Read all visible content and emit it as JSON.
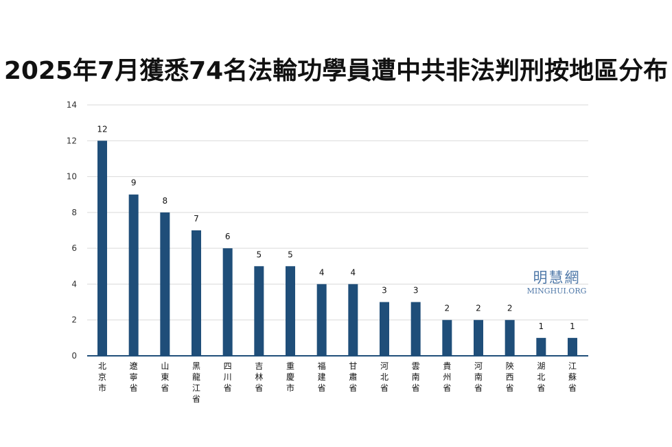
{
  "chart_data": {
    "type": "bar",
    "title": "2025年7月獲悉74名法輪功學員遭中共非法判刑按地區分布",
    "categories": [
      "北京市",
      "遼寧省",
      "山東省",
      "黑龍江省",
      "四川省",
      "吉林省",
      "重慶市",
      "福建省",
      "甘肅省",
      "河北省",
      "雲南省",
      "貴州省",
      "河南省",
      "陝西省",
      "湖北省",
      "江蘇省"
    ],
    "values": [
      12,
      9,
      8,
      7,
      6,
      5,
      5,
      4,
      4,
      3,
      3,
      2,
      2,
      2,
      1,
      1
    ],
    "ylim": [
      0,
      14
    ],
    "yticks": [
      0,
      2,
      4,
      6,
      8,
      10,
      12,
      14
    ],
    "grid": true,
    "data_labels": true,
    "bar_color": "#1f4e79",
    "xlabel": "",
    "ylabel": ""
  },
  "watermark": {
    "chinese": "明慧網",
    "english": "MINGHUI.ORG"
  }
}
